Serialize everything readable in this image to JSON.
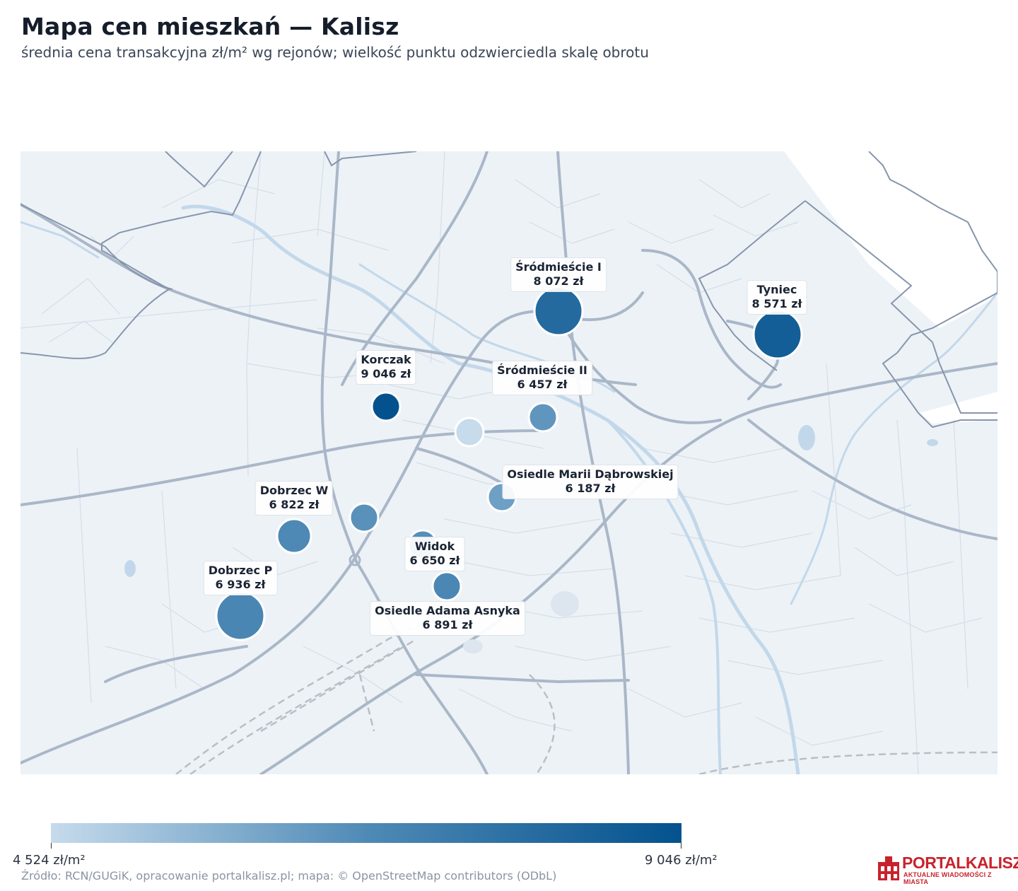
{
  "header": {
    "title": "Mapa cen mieszkań — Kalisz",
    "subtitle": "średnia cena transakcyjna zł/m² wg rejonów; wielkość punktu odzwierciedla skalę obrotu"
  },
  "map": {
    "basemap": "OpenStreetMap",
    "points": [
      {
        "name": "Śródmieście I",
        "price_text": "8 072 zł",
        "price": 8072,
        "size": "large",
        "labeled": true
      },
      {
        "name": "Tyniec",
        "price_text": "8 571 zł",
        "price": 8571,
        "size": "large",
        "labeled": true
      },
      {
        "name": "Korczak",
        "price_text": "9 046 zł",
        "price": 9046,
        "size": "small",
        "labeled": true
      },
      {
        "name": "Śródmieście II",
        "price_text": "6 457 zł",
        "price": 6457,
        "size": "small",
        "labeled": true
      },
      {
        "name": "Osiedle Marii Dąbrowskiej",
        "price_text": "6 187 zł",
        "price": 6187,
        "size": "small",
        "labeled": true
      },
      {
        "name": "Dobrzec W",
        "price_text": "6 822 zł",
        "price": 6822,
        "size": "medium",
        "labeled": true
      },
      {
        "name": "Widok",
        "price_text": "6 650 zł",
        "price": 6650,
        "size": "small",
        "labeled": true
      },
      {
        "name": "Dobrzec P",
        "price_text": "6 936 zł",
        "price": 6936,
        "size": "large",
        "labeled": true
      },
      {
        "name": "Osiedle Adama Asnyka",
        "price_text": "6 891 zł",
        "price": 6891,
        "size": "small",
        "labeled": true
      },
      {
        "name": "",
        "price": 4524,
        "size": "small",
        "labeled": false
      },
      {
        "name": "",
        "price": 6600,
        "size": "small",
        "labeled": false
      }
    ]
  },
  "legend": {
    "min_label": "4 524 zł/m²",
    "max_label": "9 046 zł/m²",
    "min_value": 4524,
    "max_value": 9046,
    "color_low": "#c6dbec",
    "color_high": "#03528e"
  },
  "footer": {
    "source": "Źródło: RCN/GUGiK, opracowanie portalkalisz.pl; mapa: © OpenStreetMap contributors (ODbL)",
    "logo_name": "PORTALKALISZ",
    "logo_tagline": "AKTUALNE WIADOMOŚCI Z MIASTA"
  },
  "colors": {
    "map_bg": "#edf2f7",
    "road": "#9fb0c4",
    "boundary": "#8796ac",
    "river": "#c2d8ea",
    "brand": "#c8232c"
  }
}
